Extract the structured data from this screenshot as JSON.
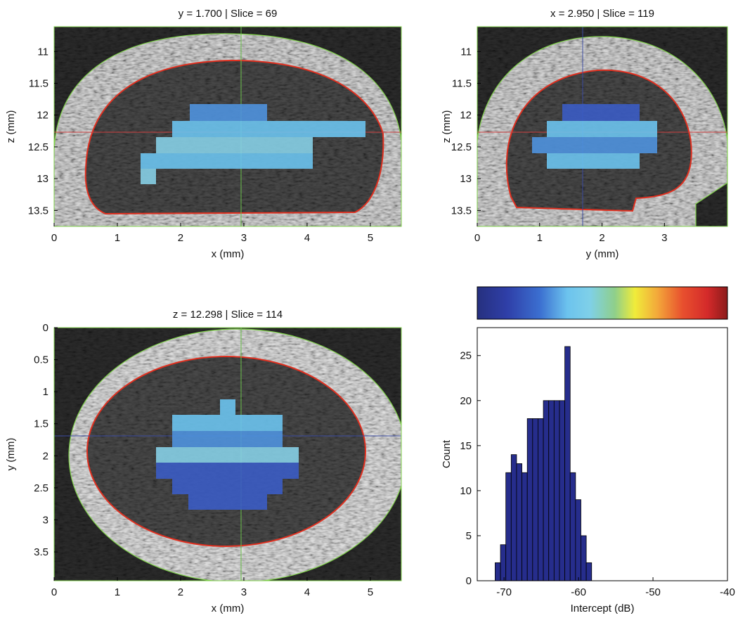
{
  "chart_data": [
    {
      "type": "image",
      "title": "y = 1.700 | Slice = 69",
      "x_label": "x (mm)",
      "y_label": "z (mm)",
      "xlim": [
        0,
        5.49
      ],
      "ylim": [
        10.61,
        13.75
      ],
      "yreverse": true,
      "xticks": [
        0,
        1,
        2,
        3,
        4,
        5
      ],
      "yticks": [
        11,
        11.5,
        12,
        12.5,
        13,
        13.5
      ]
    },
    {
      "type": "image",
      "title": "x = 2.950 | Slice = 119",
      "x_label": "y (mm)",
      "y_label": "z (mm)",
      "xlim": [
        0,
        4.01
      ],
      "ylim": [
        10.61,
        13.75
      ],
      "yreverse": true,
      "xticks": [
        0,
        1,
        2,
        3
      ],
      "yticks": [
        11,
        11.5,
        12,
        12.5,
        13,
        13.5
      ]
    },
    {
      "type": "image",
      "title": "z = 12.298 | Slice = 114",
      "x_label": "x (mm)",
      "y_label": "y (mm)",
      "xlim": [
        0,
        5.49
      ],
      "ylim": [
        0,
        3.95
      ],
      "yreverse": true,
      "xticks": [
        0,
        1,
        2,
        3,
        4,
        5
      ],
      "yticks": [
        0,
        0.5,
        1,
        1.5,
        2,
        2.5,
        3,
        3.5
      ]
    },
    {
      "type": "histogram",
      "x_label": "Intercept (dB)",
      "y_label": "Count",
      "color": "#262d8c",
      "bins": [
        -71.2,
        -70.48,
        -69.76,
        -69.04,
        -68.32,
        -67.6,
        -66.88,
        -66.16,
        -65.44,
        -64.72,
        -64,
        -63.28,
        -62.56,
        -61.84,
        -61.12,
        -60.4,
        -59.68,
        -58.96,
        -58.24
      ],
      "values": [
        2,
        4,
        12,
        14,
        13,
        12,
        18,
        18,
        18,
        20,
        20,
        20,
        20,
        26,
        12,
        9,
        5,
        2
      ],
      "xlim": [
        -73.6,
        -40
      ],
      "ylim": [
        0,
        28.1
      ],
      "xticks": [
        -70,
        -60,
        -50,
        -40
      ],
      "yticks": [
        0,
        5,
        10,
        15,
        20,
        25
      ]
    }
  ]
}
